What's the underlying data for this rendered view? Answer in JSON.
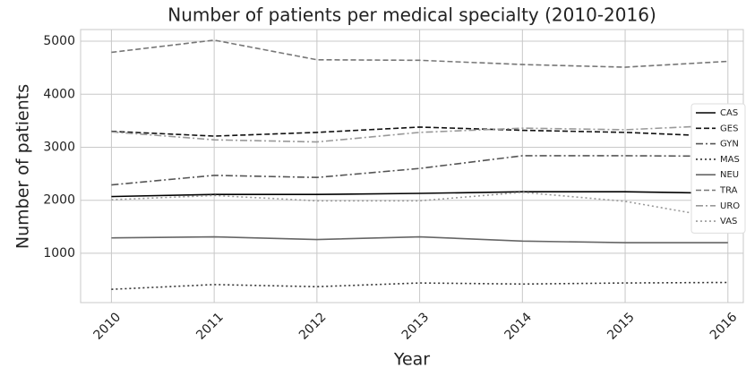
{
  "chart_data": {
    "type": "line",
    "title": "Number of patients per medical specialty (2010-2016)",
    "x_label": "Year",
    "y_label": "Number of patients",
    "x": [
      2010,
      2011,
      2012,
      2013,
      2014,
      2015,
      2016
    ],
    "xlim": [
      2009.7,
      2016.15
    ],
    "xticks": [
      2010,
      2011,
      2012,
      2013,
      2014,
      2015,
      2016
    ],
    "ylim": [
      70,
      5220
    ],
    "yticks": [
      1000,
      2000,
      3000,
      4000,
      5000
    ],
    "grid": true,
    "legend": "right",
    "series": [
      {
        "name": "CAS",
        "color": "#000000",
        "dash": "solid",
        "values": [
          2070,
          2110,
          2110,
          2130,
          2160,
          2160,
          2130
        ]
      },
      {
        "name": "GES",
        "color": "#111111",
        "dash": "dashed",
        "values": [
          3300,
          3210,
          3280,
          3380,
          3320,
          3280,
          3200
        ]
      },
      {
        "name": "GYN",
        "color": "#555555",
        "dash": "dashdot",
        "values": [
          2290,
          2470,
          2430,
          2600,
          2840,
          2840,
          2830
        ]
      },
      {
        "name": "MAS",
        "color": "#333333",
        "dash": "dotted",
        "values": [
          320,
          410,
          370,
          440,
          420,
          440,
          450
        ]
      },
      {
        "name": "NEU",
        "color": "#666666",
        "dash": "solid",
        "values": [
          1290,
          1310,
          1260,
          1310,
          1230,
          1200,
          1200
        ]
      },
      {
        "name": "TRA",
        "color": "#777777",
        "dash": "dashed",
        "values": [
          4790,
          5020,
          4650,
          4640,
          4560,
          4510,
          4620
        ]
      },
      {
        "name": "URO",
        "color": "#999999",
        "dash": "dashdot",
        "values": [
          3290,
          3140,
          3100,
          3280,
          3360,
          3330,
          3420
        ]
      },
      {
        "name": "VAS",
        "color": "#999999",
        "dash": "dotted",
        "values": [
          2010,
          2090,
          1990,
          1990,
          2150,
          1980,
          1640
        ]
      }
    ]
  }
}
